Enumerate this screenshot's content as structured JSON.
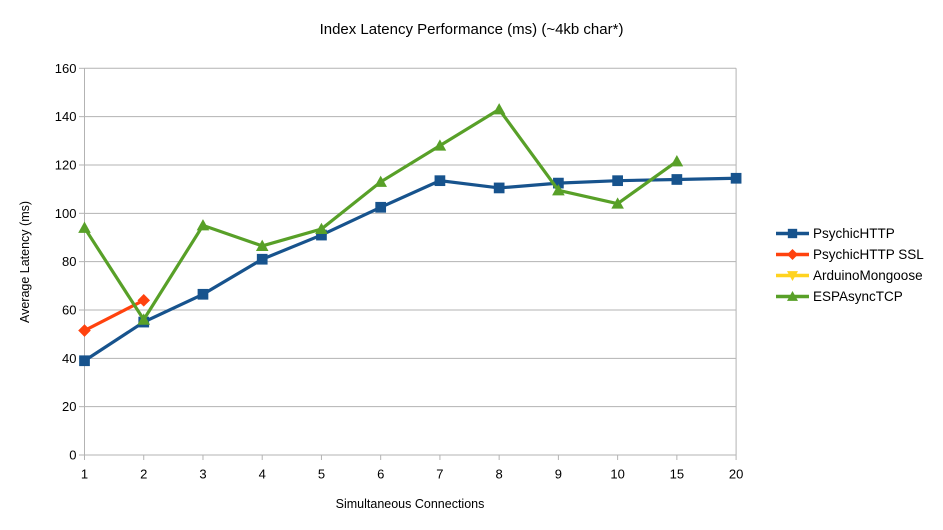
{
  "chart_data": {
    "type": "line",
    "title": "Index Latency Performance (ms) (~4kb char*)",
    "xlabel": "Simultaneous Connections",
    "ylabel": "Average Latency (ms)",
    "categories": [
      "1",
      "2",
      "3",
      "4",
      "5",
      "6",
      "7",
      "8",
      "9",
      "10",
      "15",
      "20"
    ],
    "ylim": [
      0,
      160
    ],
    "yticks": [
      0,
      20,
      40,
      60,
      80,
      100,
      120,
      140,
      160
    ],
    "grid": "horizontal",
    "legend_position": "right",
    "series": [
      {
        "name": "PsychicHTTP",
        "color": "#17538d",
        "marker": "square",
        "values": [
          39,
          55,
          66.5,
          81,
          91,
          102.5,
          113.5,
          110.5,
          112.5,
          113.5,
          114,
          114.5
        ]
      },
      {
        "name": "PsychicHTTP SSL",
        "color": "#ff420e",
        "marker": "diamond",
        "values": [
          51.5,
          64,
          null,
          null,
          null,
          null,
          null,
          null,
          null,
          null,
          null,
          null
        ]
      },
      {
        "name": "ArduinoMongoose",
        "color": "#ffd320",
        "marker": "triangle-down",
        "values": [
          null,
          null,
          null,
          null,
          null,
          null,
          null,
          null,
          null,
          null,
          null,
          null
        ]
      },
      {
        "name": "ESPAsyncTCP",
        "color": "#58a028",
        "marker": "triangle-up",
        "values": [
          94,
          56,
          95,
          86.5,
          93.5,
          113,
          128,
          143,
          109.5,
          104,
          121.5,
          null
        ]
      }
    ]
  }
}
